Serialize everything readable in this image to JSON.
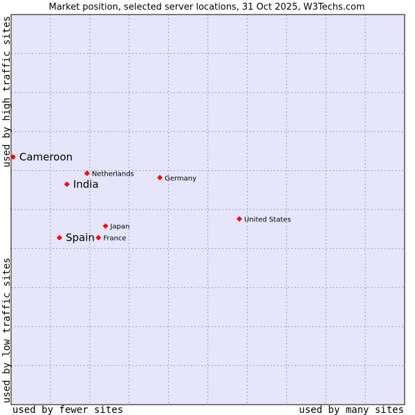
{
  "chart_data": {
    "type": "scatter",
    "title": "Market position, selected server locations, 31 Oct 2025, W3Techs.com",
    "xlabel_low": "used by fewer sites",
    "xlabel_high": "used by many sites",
    "ylabel_low": "used by low traffic sites",
    "ylabel_high": "used by high traffic sites",
    "xlim": [
      0,
      100
    ],
    "ylim": [
      0,
      100
    ],
    "grid": true,
    "background_color": "#e6e6fa",
    "grid_color": "#9a9ab4",
    "point_color": "#ff0000",
    "points": [
      {
        "name": "Cameroon",
        "x": 0.5,
        "y": 63.5,
        "emphasis": "large"
      },
      {
        "name": "Netherlands",
        "x": 19.3,
        "y": 59.3,
        "emphasis": "small"
      },
      {
        "name": "India",
        "x": 14.2,
        "y": 56.5,
        "emphasis": "large"
      },
      {
        "name": "Germany",
        "x": 37.8,
        "y": 58.2,
        "emphasis": "small"
      },
      {
        "name": "United States",
        "x": 58.0,
        "y": 47.6,
        "emphasis": "small"
      },
      {
        "name": "Japan",
        "x": 24.0,
        "y": 45.8,
        "emphasis": "small"
      },
      {
        "name": "Spain",
        "x": 12.3,
        "y": 42.8,
        "emphasis": "large"
      },
      {
        "name": "France",
        "x": 22.2,
        "y": 42.8,
        "emphasis": "small"
      }
    ]
  }
}
